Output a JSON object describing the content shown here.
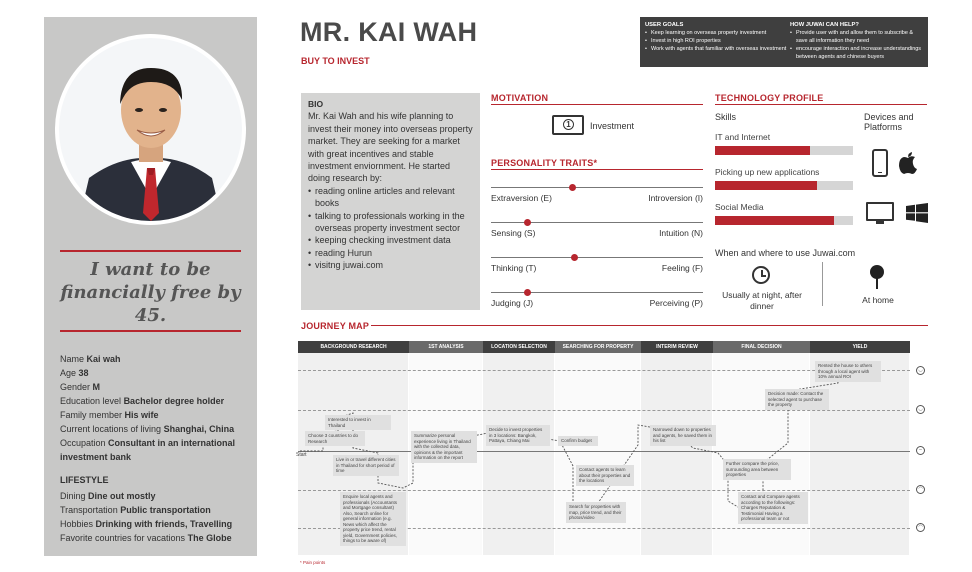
{
  "persona": {
    "name": "MR. KAI WAH",
    "type": "BUY TO INVEST",
    "quote": "I want to be financially free by 45."
  },
  "profile": {
    "name_label": "Name",
    "name_value": "Kai wah",
    "age_label": "Age",
    "age_value": "38",
    "gender_label": "Gender",
    "gender_value": "M",
    "education_label": "Education level",
    "education_value": "Bachelor degree holder",
    "family_label": "Family member",
    "family_value": "His wife",
    "location_label": "Current locations of living",
    "location_value": "Shanghai, China",
    "occupation_label": "Occupation",
    "occupation_value": "Consultant in an international investment bank"
  },
  "lifestyle": {
    "title": "LIFESTYLE",
    "dining_label": "Dining",
    "dining_value": "Dine out mostly",
    "transport_label": "Transportation",
    "transport_value": "Public transportation",
    "hobbies_label": "Hobbies",
    "hobbies_value": "Drinking with friends, Travelling",
    "countries_label": "Favorite countries for vacations",
    "countries_value": "The Globe"
  },
  "user_goals": {
    "title": "USER GOALS",
    "items": [
      "Keep learning on overseas property investment",
      "Invest in high ROI properties",
      "Work with agents that familiar with overseas investment"
    ]
  },
  "juwai_help": {
    "title": "HOW JUWAI CAN HELP?",
    "items": [
      "Provide user with and allow them to subscribe & save all information they need",
      "encourage interaction and increase understandings between agents and chinese buyers"
    ]
  },
  "bio": {
    "title": "BIO",
    "text": "Mr. Kai Wah and his wife planning to invest their money into overseas property market. They are seeking for a market with great incentives and stable investment enviornment. He started doing research by:",
    "items": [
      "reading online articles and relevant books",
      "talking to professionals working in the overseas property investment sector",
      "keeping checking investment data",
      "reading Hurun",
      "visitng juwai.com"
    ]
  },
  "motivation": {
    "title": "MOTIVATION",
    "item": "Investment",
    "icon": "money-icon"
  },
  "personality": {
    "title": "PERSONALITY TRAITS*",
    "traits": [
      {
        "left": "Extraversion (E)",
        "right": "Introversion (I)",
        "position": 0.38
      },
      {
        "left": "Sensing (S)",
        "right": "Intuition (N)",
        "position": 0.17
      },
      {
        "left": "Thinking (T)",
        "right": "Feeling (F)",
        "position": 0.39
      },
      {
        "left": "Judging (J)",
        "right": "Perceiving (P)",
        "position": 0.17
      }
    ]
  },
  "technology": {
    "title": "TECHNOLOGY PROFILE",
    "skills_title": "Skills",
    "devices_title": "Devices and Platforms",
    "skills": [
      {
        "label": "IT and Internet",
        "level": 0.69
      },
      {
        "label": "Picking up new applications",
        "level": 0.74
      },
      {
        "label": "Social Media",
        "level": 0.86
      }
    ],
    "where_title": "When and where to use Juwai.com",
    "when_text": "Usually at night, after dinner",
    "where_text": "At home"
  },
  "journey": {
    "title": "JOURNEY MAP",
    "stages": [
      "BACKGROUND RESEARCH",
      "1ST ANALYSIS",
      "LOCATION SELECTION",
      "SEARCHING FOR PROPERTY",
      "INTERIM REVIEW",
      "FINAL DECISION",
      "YIELD"
    ],
    "start_label": "Start",
    "footnote": "* Pain points",
    "notes": [
      "Interested to invest in Thailand",
      "Choose 3 countries to do Research",
      "Live in or travel different cities in Thailand for short period of time",
      "Enquire local agents and professionals (Accountants and Mortgage consultant) Also, Search online for general information (e.g. News which affect the property price trend, rental yield, Government policies, things to be aware of)",
      "Summarize personal experience living in Thailand with the collected data, opinions & the important information on the report",
      "Decide to invest properties in 3 locations: Bangkok, Pattaya, Chiang Mai",
      "Confirm budget",
      "Contact agents to learn about their properties and the locations",
      "Search for properties with map, price trend, and their photos/video",
      "Narrowed down to properties and agents, he saved them in his list",
      "Further compare the price, surrounding area between properties",
      "Contact and Compare agents according to the followings: Charges Reputation & Testimonial Having a professional team or not",
      "Decision made: Contact the selected agent to purchase the property",
      "Rented the house to others through a local agent with 10% annual ROI"
    ]
  }
}
